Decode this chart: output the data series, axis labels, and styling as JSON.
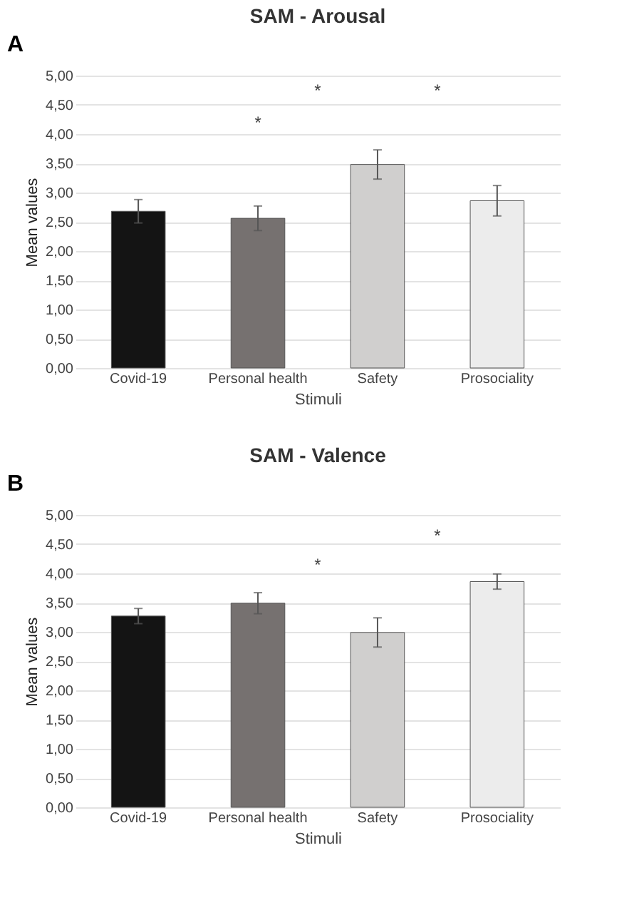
{
  "chart_data": [
    {
      "type": "bar",
      "title": "SAM - Arousal",
      "xlabel": "Stimuli",
      "ylabel": "Mean values",
      "categories": [
        "Covid-19",
        "Personal health",
        "Safety",
        "Prosociality"
      ],
      "values": [
        2.68,
        2.56,
        3.48,
        2.86
      ],
      "errors": [
        0.2,
        0.21,
        0.25,
        0.26
      ],
      "colors": [
        "#141414",
        "#767170",
        "#d0cfce",
        "#ececec"
      ],
      "ylim": [
        0,
        5
      ],
      "yticks": [
        {
          "value": 0,
          "label": "0,00"
        },
        {
          "value": 0.5,
          "label": "0,50"
        },
        {
          "value": 1,
          "label": "1,00"
        },
        {
          "value": 1.5,
          "label": "1,50"
        },
        {
          "value": 2,
          "label": "2,00"
        },
        {
          "value": 2.5,
          "label": "2,50"
        },
        {
          "value": 3,
          "label": "3,00"
        },
        {
          "value": 3.5,
          "label": "3,50"
        },
        {
          "value": 4,
          "label": "4,00"
        },
        {
          "value": 4.5,
          "label": "4,50"
        },
        {
          "value": 5,
          "label": "5,00"
        }
      ],
      "grid": "y",
      "legend": false,
      "annotations": [
        "A",
        "*",
        "*",
        "*"
      ]
    },
    {
      "type": "bar",
      "title": "SAM - Valence",
      "xlabel": "Stimuli",
      "ylabel": "Mean values",
      "categories": [
        "Covid-19",
        "Personal health",
        "Safety",
        "Prosociality"
      ],
      "values": [
        3.27,
        3.49,
        2.99,
        3.86
      ],
      "errors": [
        0.13,
        0.18,
        0.25,
        0.13
      ],
      "colors": [
        "#141414",
        "#767170",
        "#d0cfce",
        "#ececec"
      ],
      "ylim": [
        0,
        5
      ],
      "yticks": [
        {
          "value": 0,
          "label": "0,00"
        },
        {
          "value": 0.5,
          "label": "0,50"
        },
        {
          "value": 1,
          "label": "1,00"
        },
        {
          "value": 1.5,
          "label": "1,50"
        },
        {
          "value": 2,
          "label": "2,00"
        },
        {
          "value": 2.5,
          "label": "2,50"
        },
        {
          "value": 3,
          "label": "3,00"
        },
        {
          "value": 3.5,
          "label": "3,50"
        },
        {
          "value": 4,
          "label": "4,00"
        },
        {
          "value": 4.5,
          "label": "4,50"
        },
        {
          "value": 5,
          "label": "5,00"
        }
      ],
      "grid": "y",
      "legend": false,
      "annotations": [
        "B",
        "*",
        "*"
      ]
    }
  ]
}
